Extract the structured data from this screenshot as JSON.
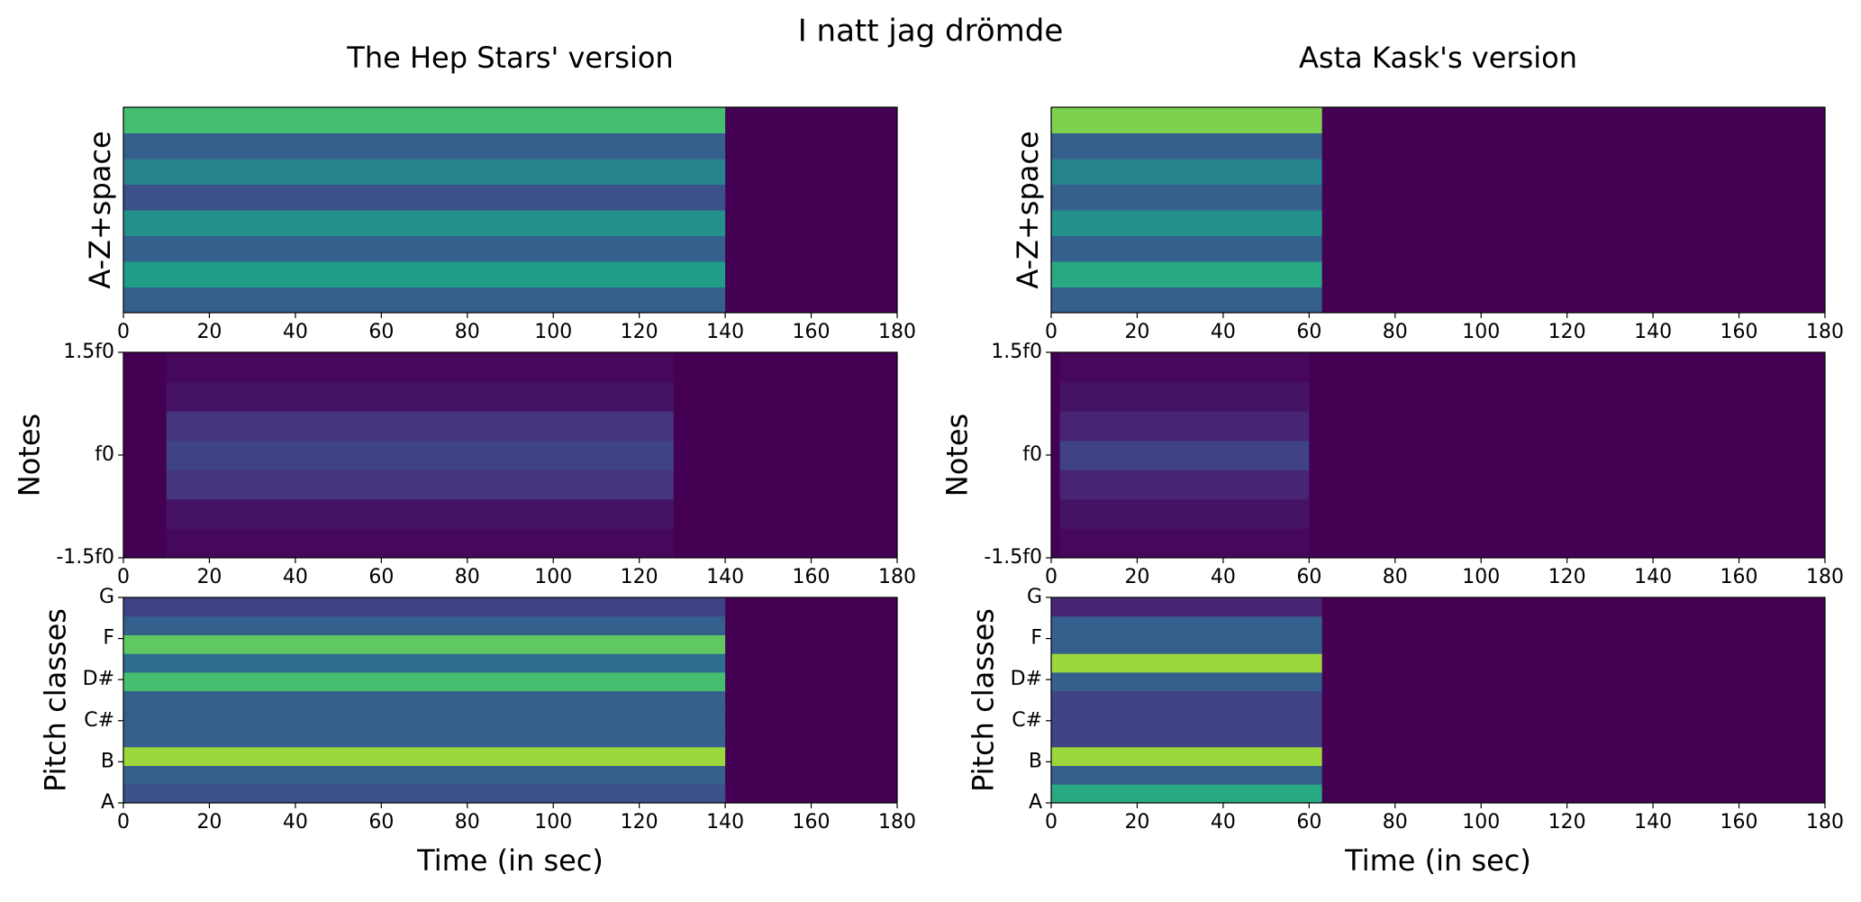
{
  "title": "I natt jag drömde",
  "chart_data": [
    {
      "type": "heatmap",
      "title": "The Hep Stars' version",
      "ylabel": "A-Z+space",
      "colormap": "viridis",
      "xlim": [
        0,
        180
      ],
      "xticks": [
        0,
        20,
        40,
        60,
        80,
        100,
        120,
        140,
        160,
        180
      ],
      "time_range": [
        0,
        140
      ],
      "values": [
        0.3,
        0.55,
        0.3,
        0.5,
        0.25,
        0.45,
        0.3,
        0.7
      ]
    },
    {
      "type": "heatmap",
      "ylabel": "Notes",
      "colormap": "viridis",
      "xlim": [
        0,
        180
      ],
      "xticks": [
        0,
        20,
        40,
        60,
        80,
        100,
        120,
        140,
        160,
        180
      ],
      "ylim": [
        -1.5,
        1.5
      ],
      "yticks": [
        {
          "value": 1.5,
          "label": "1.5f0"
        },
        {
          "value": 0,
          "label": "f0"
        },
        {
          "value": -1.5,
          "label": "-1.5f0"
        }
      ],
      "time_range": [
        10,
        128
      ],
      "values": [
        0.02,
        0.05,
        0.15,
        0.2,
        0.15,
        0.05,
        0.02
      ]
    },
    {
      "type": "heatmap",
      "ylabel": "Pitch classes",
      "xlabel": "Time (in sec)",
      "colormap": "viridis",
      "xlim": [
        0,
        180
      ],
      "xticks": [
        0,
        20,
        40,
        60,
        80,
        100,
        120,
        140,
        160,
        180
      ],
      "ylim": [
        0,
        10
      ],
      "yticks": [
        {
          "value": 10,
          "label": "G"
        },
        {
          "value": 8,
          "label": "F"
        },
        {
          "value": 6,
          "label": "D#"
        },
        {
          "value": 4,
          "label": "C#"
        },
        {
          "value": 2,
          "label": "B"
        },
        {
          "value": 0,
          "label": "A"
        }
      ],
      "time_range": [
        0,
        140
      ],
      "values": [
        0.25,
        0.3,
        0.85,
        0.3,
        0.3,
        0.3,
        0.7,
        0.35,
        0.75,
        0.3,
        0.2
      ]
    },
    {
      "type": "heatmap",
      "title": "Asta Kask's version",
      "ylabel": "A-Z+space",
      "colormap": "viridis",
      "xlim": [
        0,
        180
      ],
      "xticks": [
        0,
        20,
        40,
        60,
        80,
        100,
        120,
        140,
        160,
        180
      ],
      "time_range": [
        0,
        63
      ],
      "values": [
        0.3,
        0.6,
        0.3,
        0.5,
        0.3,
        0.45,
        0.3,
        0.8
      ]
    },
    {
      "type": "heatmap",
      "ylabel": "Notes",
      "colormap": "viridis",
      "xlim": [
        0,
        180
      ],
      "xticks": [
        0,
        20,
        40,
        60,
        80,
        100,
        120,
        140,
        160,
        180
      ],
      "ylim": [
        -1.5,
        1.5
      ],
      "yticks": [
        {
          "value": 1.5,
          "label": "1.5f0"
        },
        {
          "value": 0,
          "label": "f0"
        },
        {
          "value": -1.5,
          "label": "-1.5f0"
        }
      ],
      "time_range": [
        2,
        60
      ],
      "values": [
        0.02,
        0.05,
        0.1,
        0.2,
        0.1,
        0.05,
        0.02
      ]
    },
    {
      "type": "heatmap",
      "ylabel": "Pitch classes",
      "xlabel": "Time (in sec)",
      "colormap": "viridis",
      "xlim": [
        0,
        180
      ],
      "xticks": [
        0,
        20,
        40,
        60,
        80,
        100,
        120,
        140,
        160,
        180
      ],
      "ylim": [
        0,
        10
      ],
      "yticks": [
        {
          "value": 10,
          "label": "G"
        },
        {
          "value": 8,
          "label": "F"
        },
        {
          "value": 6,
          "label": "D#"
        },
        {
          "value": 4,
          "label": "C#"
        },
        {
          "value": 2,
          "label": "B"
        },
        {
          "value": 0,
          "label": "A"
        }
      ],
      "time_range": [
        0,
        63
      ],
      "values": [
        0.6,
        0.3,
        0.85,
        0.2,
        0.2,
        0.2,
        0.3,
        0.85,
        0.3,
        0.3,
        0.1
      ]
    }
  ]
}
